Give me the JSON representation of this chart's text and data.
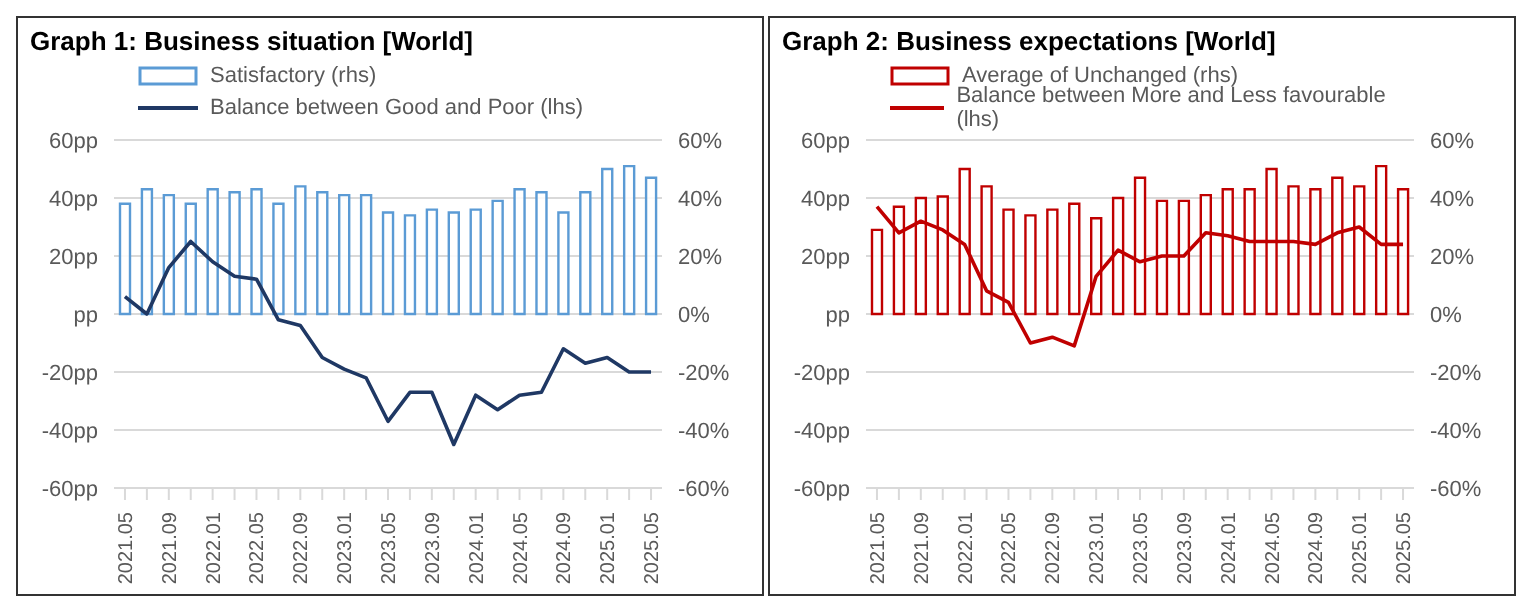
{
  "chart_data": [
    {
      "type": "bar",
      "title": "Graph 1: Business situation [World]",
      "categories": [
        "2021.05",
        null,
        "2021.09",
        null,
        "2022.01",
        null,
        "2022.05",
        null,
        "2022.09",
        null,
        "2023.01",
        null,
        "2023.05",
        null,
        "2023.09",
        null,
        "2024.01",
        null,
        "2024.05",
        null,
        "2024.09",
        null,
        "2025.01",
        null,
        "2025.05"
      ],
      "series": [
        {
          "name": "Satisfactory (rhs)",
          "axis": "y2",
          "color": "#5b9bd5",
          "values": [
            38,
            43,
            41,
            38,
            43,
            42,
            43,
            38,
            44,
            42,
            41,
            41,
            35,
            34,
            36,
            35,
            36,
            39,
            43,
            42,
            35,
            42,
            50,
            51,
            47
          ]
        },
        {
          "name": "Balance between Good and Poor (lhs)",
          "type": "line",
          "color": "#1f3864",
          "values": [
            6,
            0,
            16,
            25,
            18,
            13,
            12,
            -2,
            -4,
            -15,
            -19,
            -22,
            -37,
            -27,
            -27,
            -45,
            -28,
            -33,
            -28,
            -27,
            -12,
            -17,
            -15,
            -20,
            -20
          ]
        }
      ],
      "ylim": [
        -60,
        60
      ],
      "yticks": [
        {
          "value": -60,
          "label": "-60pp"
        },
        {
          "value": -40,
          "label": "-40pp"
        },
        {
          "value": -20,
          "label": "-20pp"
        },
        {
          "value": 0,
          "label": "pp"
        },
        {
          "value": 20,
          "label": "20pp"
        },
        {
          "value": 40,
          "label": "40pp"
        },
        {
          "value": 60,
          "label": "60pp"
        }
      ],
      "y2lim": [
        -60,
        60
      ],
      "y2ticks": [
        {
          "value": -60,
          "label": "-60%"
        },
        {
          "value": -40,
          "label": "-40%"
        },
        {
          "value": -20,
          "label": "-20%"
        },
        {
          "value": 0,
          "label": "0%"
        },
        {
          "value": 20,
          "label": "20%"
        },
        {
          "value": 40,
          "label": "40%"
        },
        {
          "value": 60,
          "label": "60%"
        }
      ],
      "grid": "y",
      "legend": "top",
      "marker": "none"
    },
    {
      "type": "bar",
      "title": "Graph 2: Business expectations [World]",
      "categories": [
        "2021.05",
        null,
        "2021.09",
        null,
        "2022.01",
        null,
        "2022.05",
        null,
        "2022.09",
        null,
        "2023.01",
        null,
        "2023.05",
        null,
        "2023.09",
        null,
        "2024.01",
        null,
        "2024.05",
        null,
        "2024.09",
        null,
        "2025.01",
        null,
        "2025.05"
      ],
      "series": [
        {
          "name": "Average of Unchanged (rhs)",
          "axis": "y2",
          "color": "#c00000",
          "values": [
            29,
            37,
            40,
            40.5,
            50,
            44,
            36,
            34,
            36,
            38,
            33,
            40,
            47,
            39,
            39,
            41,
            43,
            43,
            50,
            44,
            43,
            47,
            44,
            51,
            43
          ]
        },
        {
          "name": "Balance between More and Less favourable (lhs)",
          "type": "line",
          "color": "#c00000",
          "values": [
            37,
            28,
            32,
            29,
            24,
            8,
            4,
            -10,
            -8,
            -11,
            13,
            22,
            18,
            20,
            20,
            28,
            27,
            25,
            25,
            25,
            24,
            28,
            30,
            24,
            24
          ]
        }
      ],
      "ylim": [
        -60,
        60
      ],
      "yticks": [
        {
          "value": -60,
          "label": "-60pp"
        },
        {
          "value": -40,
          "label": "-40pp"
        },
        {
          "value": -20,
          "label": "-20pp"
        },
        {
          "value": 0,
          "label": "pp"
        },
        {
          "value": 20,
          "label": "20pp"
        },
        {
          "value": 40,
          "label": "40pp"
        },
        {
          "value": 60,
          "label": "60pp"
        }
      ],
      "y2lim": [
        -60,
        60
      ],
      "y2ticks": [
        {
          "value": -60,
          "label": "-60%"
        },
        {
          "value": -40,
          "label": "-40%"
        },
        {
          "value": -20,
          "label": "-20%"
        },
        {
          "value": 0,
          "label": "0%"
        },
        {
          "value": 20,
          "label": "20%"
        },
        {
          "value": 40,
          "label": "40%"
        },
        {
          "value": 60,
          "label": "60%"
        }
      ],
      "grid": "y",
      "legend": "top",
      "marker": "none"
    }
  ]
}
